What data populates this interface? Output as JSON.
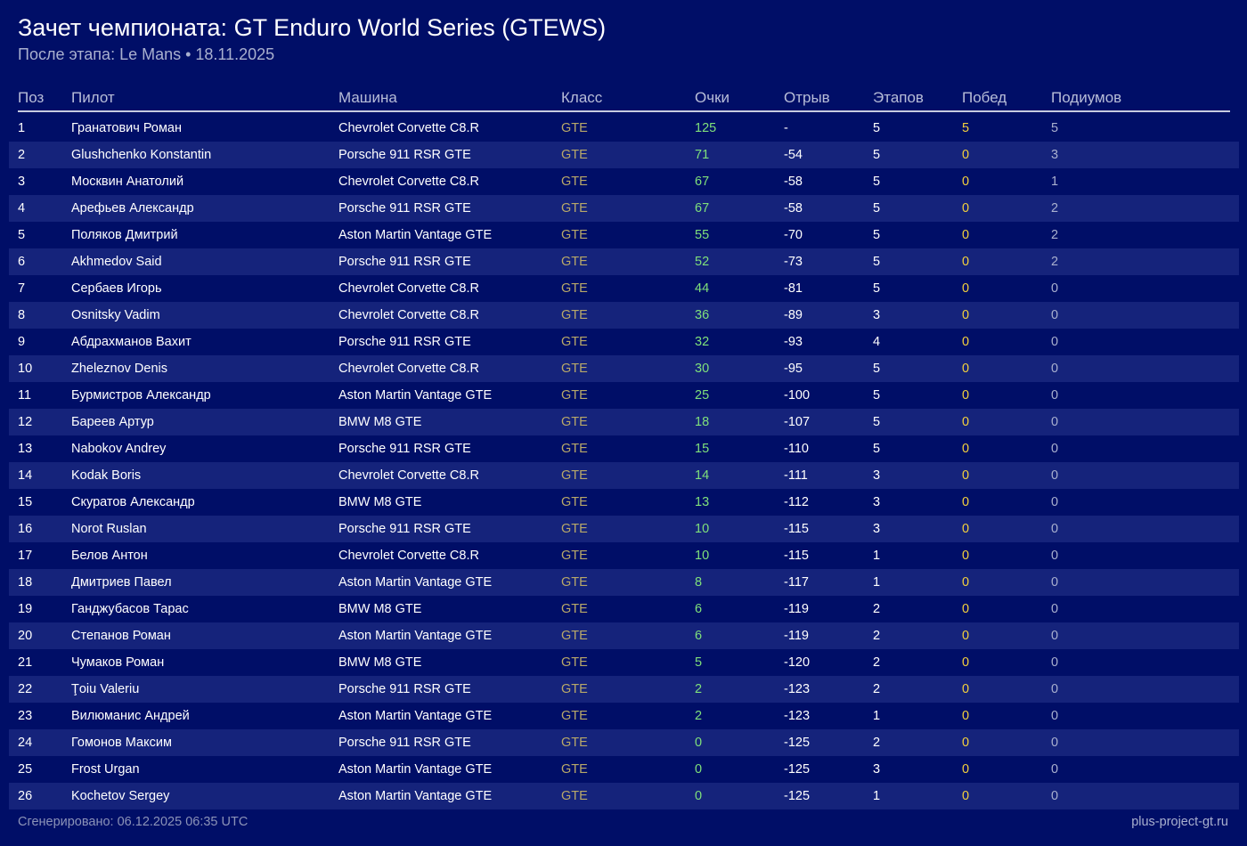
{
  "header": {
    "title": "Зачет чемпионата: GT Enduro World Series (GTEWS)",
    "subtitle": "После этапа: Le Mans • 18.11.2025"
  },
  "table": {
    "columns": [
      "Поз",
      "Пилот",
      "Машина",
      "Класс",
      "Очки",
      "Отрыв",
      "Этапов",
      "Побед",
      "Подиумов"
    ],
    "rows": [
      [
        "1",
        "Гранатович Роман",
        "Chevrolet Corvette C8.R",
        "GTE",
        "125",
        "-",
        "5",
        "5",
        "5"
      ],
      [
        "2",
        "Glushchenko Konstantin",
        "Porsche 911 RSR GTE",
        "GTE",
        "71",
        "-54",
        "5",
        "0",
        "3"
      ],
      [
        "3",
        "Москвин Анатолий",
        "Chevrolet Corvette C8.R",
        "GTE",
        "67",
        "-58",
        "5",
        "0",
        "1"
      ],
      [
        "4",
        "Арефьев Александр",
        "Porsche 911 RSR GTE",
        "GTE",
        "67",
        "-58",
        "5",
        "0",
        "2"
      ],
      [
        "5",
        "Поляков Дмитрий",
        "Aston Martin Vantage GTE",
        "GTE",
        "55",
        "-70",
        "5",
        "0",
        "2"
      ],
      [
        "6",
        "Akhmedov Said",
        "Porsche 911 RSR GTE",
        "GTE",
        "52",
        "-73",
        "5",
        "0",
        "2"
      ],
      [
        "7",
        "Сербаев Игорь",
        "Chevrolet Corvette C8.R",
        "GTE",
        "44",
        "-81",
        "5",
        "0",
        "0"
      ],
      [
        "8",
        "Osnitsky Vadim",
        "Chevrolet Corvette C8.R",
        "GTE",
        "36",
        "-89",
        "3",
        "0",
        "0"
      ],
      [
        "9",
        "Абдрахманов Вахит",
        "Porsche 911 RSR GTE",
        "GTE",
        "32",
        "-93",
        "4",
        "0",
        "0"
      ],
      [
        "10",
        "Zheleznov Denis",
        "Chevrolet Corvette C8.R",
        "GTE",
        "30",
        "-95",
        "5",
        "0",
        "0"
      ],
      [
        "11",
        "Бурмистров Александр",
        "Aston Martin Vantage GTE",
        "GTE",
        "25",
        "-100",
        "5",
        "0",
        "0"
      ],
      [
        "12",
        "Бареев Артур",
        "BMW M8 GTE",
        "GTE",
        "18",
        "-107",
        "5",
        "0",
        "0"
      ],
      [
        "13",
        "Nabokov Andrey",
        "Porsche 911 RSR GTE",
        "GTE",
        "15",
        "-110",
        "5",
        "0",
        "0"
      ],
      [
        "14",
        "Kodak Boris",
        "Chevrolet Corvette C8.R",
        "GTE",
        "14",
        "-111",
        "3",
        "0",
        "0"
      ],
      [
        "15",
        "Скуратов Александр",
        "BMW M8 GTE",
        "GTE",
        "13",
        "-112",
        "3",
        "0",
        "0"
      ],
      [
        "16",
        "Norot Ruslan",
        "Porsche 911 RSR GTE",
        "GTE",
        "10",
        "-115",
        "3",
        "0",
        "0"
      ],
      [
        "17",
        "Белов Антон",
        "Chevrolet Corvette C8.R",
        "GTE",
        "10",
        "-115",
        "1",
        "0",
        "0"
      ],
      [
        "18",
        "Дмитриев Павел",
        "Aston Martin Vantage GTE",
        "GTE",
        "8",
        "-117",
        "1",
        "0",
        "0"
      ],
      [
        "19",
        "Ганджубасов Тарас",
        "BMW M8 GTE",
        "GTE",
        "6",
        "-119",
        "2",
        "0",
        "0"
      ],
      [
        "20",
        "Степанов Роман",
        "Aston Martin Vantage GTE",
        "GTE",
        "6",
        "-119",
        "2",
        "0",
        "0"
      ],
      [
        "21",
        "Чумаков Роман",
        "BMW M8 GTE",
        "GTE",
        "5",
        "-120",
        "2",
        "0",
        "0"
      ],
      [
        "22",
        "Ţoiu Valeriu",
        "Porsche 911 RSR GTE",
        "GTE",
        "2",
        "-123",
        "2",
        "0",
        "0"
      ],
      [
        "23",
        "Вилюманис Андрей",
        "Aston Martin Vantage GTE",
        "GTE",
        "2",
        "-123",
        "1",
        "0",
        "0"
      ],
      [
        "24",
        "Гомонов Максим",
        "Porsche 911 RSR GTE",
        "GTE",
        "0",
        "-125",
        "2",
        "0",
        "0"
      ],
      [
        "25",
        "Frost Urgan",
        "Aston Martin Vantage GTE",
        "GTE",
        "0",
        "-125",
        "3",
        "0",
        "0"
      ],
      [
        "26",
        "Kochetov Sergey",
        "Aston Martin Vantage GTE",
        "GTE",
        "0",
        "-125",
        "1",
        "0",
        "0"
      ]
    ]
  },
  "footer": {
    "generated": "Сгенерировано: 06.12.2025 06:35 UTC",
    "site": "plus-project-gt.ru"
  },
  "colors": {
    "background": "#000e67",
    "row_alt": "#15237b",
    "class": "#b8a869",
    "points": "#7fe07b",
    "wins": "#f3d03d"
  }
}
